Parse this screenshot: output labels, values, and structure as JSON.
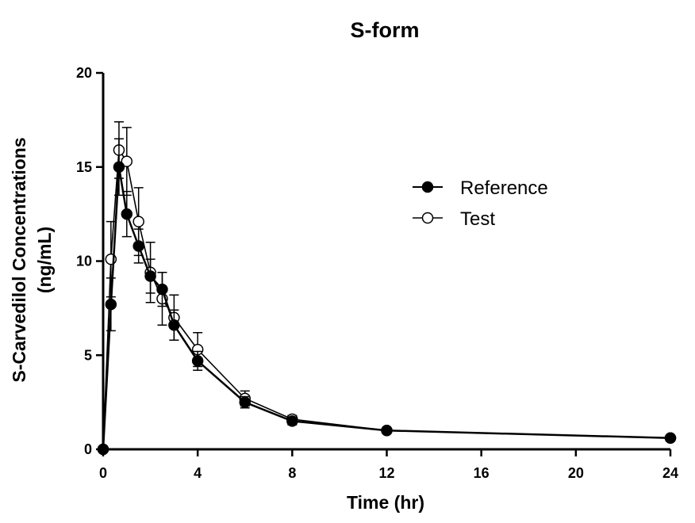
{
  "chart_data": {
    "type": "line",
    "title": "S-form",
    "xlabel": "Time (hr)",
    "ylabel_line1": "S-Carvedilol Concentrations",
    "ylabel_line2": "(ng/mL)",
    "xlim": [
      0,
      24
    ],
    "ylim": [
      0,
      20
    ],
    "x_ticks": [
      0,
      4,
      8,
      12,
      16,
      20,
      24
    ],
    "y_ticks": [
      0,
      5,
      10,
      15,
      20
    ],
    "grid": false,
    "legend_position": "upper-right",
    "series": [
      {
        "name": "Reference",
        "marker": "filled-circle",
        "x": [
          0,
          0.33,
          0.67,
          1,
          1.5,
          2,
          2.5,
          3,
          4,
          6,
          8,
          12,
          24
        ],
        "y": [
          0,
          7.7,
          15.0,
          12.5,
          10.8,
          9.2,
          8.5,
          6.6,
          4.7,
          2.5,
          1.5,
          1.0,
          0.6
        ],
        "err": [
          0,
          1.4,
          1.5,
          1.2,
          0.9,
          0.9,
          0.9,
          0.8,
          0.5,
          0.3,
          0.2,
          0.1,
          0.1
        ]
      },
      {
        "name": "Test",
        "marker": "open-circle",
        "x": [
          0,
          0.33,
          0.67,
          1,
          1.5,
          2,
          2.5,
          3,
          4,
          6,
          8,
          12,
          24
        ],
        "y": [
          0,
          10.1,
          15.9,
          15.3,
          12.1,
          9.4,
          8.0,
          7.0,
          5.3,
          2.7,
          1.6,
          1.0,
          0.6
        ],
        "err": [
          0,
          2.0,
          1.5,
          1.8,
          1.8,
          1.6,
          1.4,
          1.2,
          0.9,
          0.4,
          0.2,
          0.1,
          0.1
        ]
      }
    ]
  }
}
